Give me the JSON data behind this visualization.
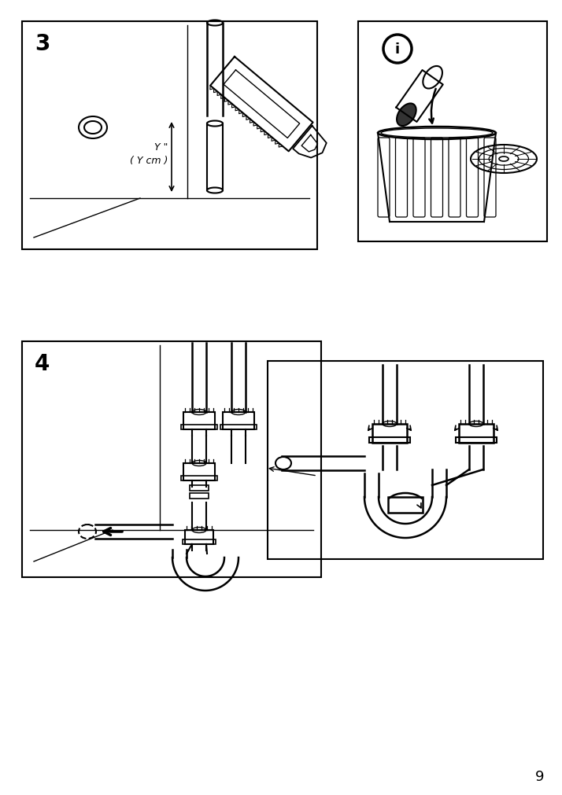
{
  "page_number": "9",
  "bg_color": "#ffffff",
  "line_color": "#000000",
  "step3_label": "3",
  "step4_label": "4",
  "info_label": "i",
  "measurement_text1": "Y \"",
  "measurement_text2": "( Y cm )"
}
